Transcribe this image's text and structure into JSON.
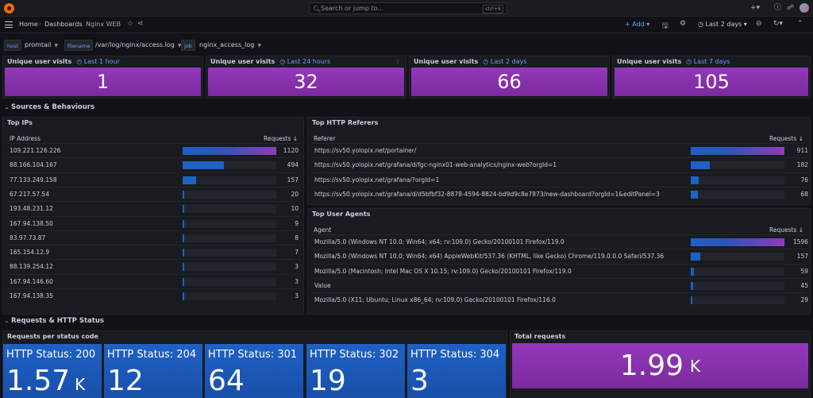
{
  "topbar": {
    "search_placeholder": "Search or jump to...",
    "shortcut": "ctrl+k"
  },
  "breadcrumb": [
    "Home",
    "Dashboards",
    "Nginx WEB"
  ],
  "toolbar": {
    "add_label": "Add",
    "time_range": "Last 2 days"
  },
  "variables": [
    {
      "label": "host",
      "value": "promtail"
    },
    {
      "label": "filename",
      "value": "/var/log/nginx/access.log"
    },
    {
      "label": "job",
      "value": "nginx_access_log"
    }
  ],
  "stats": [
    {
      "title": "Unique user visits",
      "range": "Last 1 hour",
      "value": "1"
    },
    {
      "title": "Unique user visits",
      "range": "Last 24 hours",
      "value": "32"
    },
    {
      "title": "Unique user visits",
      "range": "Last 2 days",
      "value": "66"
    },
    {
      "title": "Unique user visits",
      "range": "Last 7 days",
      "value": "105"
    }
  ],
  "rows": {
    "sources": "Sources & Behaviours",
    "requests": "Requests & HTTP Status"
  },
  "top_ips": {
    "title": "Top IPs",
    "col_ip": "IP Address",
    "col_requests": "Requests",
    "max": 1120,
    "items": [
      {
        "ip": "109.221.126.226",
        "requests": 1120
      },
      {
        "ip": "88.166.104.167",
        "requests": 494
      },
      {
        "ip": "77.133.249.158",
        "requests": 157
      },
      {
        "ip": "67.217.57.54",
        "requests": 20
      },
      {
        "ip": "193.48.231.12",
        "requests": 10
      },
      {
        "ip": "167.94.138.50",
        "requests": 9
      },
      {
        "ip": "83.97.73.87",
        "requests": 8
      },
      {
        "ip": "165.154.12.9",
        "requests": 7
      },
      {
        "ip": "88.139.254.12",
        "requests": 3
      },
      {
        "ip": "167.94.146.60",
        "requests": 3
      },
      {
        "ip": "167.94.138.35",
        "requests": 3
      }
    ]
  },
  "top_referers": {
    "title": "Top HTTP Referers",
    "col_referer": "Referer",
    "col_requests": "Requests",
    "max": 911,
    "items": [
      {
        "referer": "https://sv50.yolopix.net/portainer/",
        "requests": 911
      },
      {
        "referer": "https://sv50.yolopix.net/grafana/d/fgc-nginx01-web-analytics/nginx-web?orgId=1",
        "requests": 182
      },
      {
        "referer": "https://sv50.yolopix.net/grafana/?orgId=1",
        "requests": 76
      },
      {
        "referer": "https://sv50.yolopix.net/grafana/d/d5bfbf32-8878-4594-8824-bd9d9c8e7873/new-dashboard?orgId=1&editPanel=3",
        "requests": 68
      }
    ]
  },
  "top_agents": {
    "title": "Top User Agents",
    "col_agent": "Agent",
    "col_requests": "Requests",
    "max": 1596,
    "items": [
      {
        "agent": "Mozilla/5.0 (Windows NT 10.0; Win64; x64; rv:109.0) Gecko/20100101 Firefox/119.0",
        "requests": 1596
      },
      {
        "agent": "Mozilla/5.0 (Windows NT 10.0; Win64; x64) AppleWebKit/537.36 (KHTML, like Gecko) Chrome/119.0.0.0 Safari/537.36",
        "requests": 157
      },
      {
        "agent": "Mozilla/5.0 (Macintosh; Intel Mac OS X 10.15; rv:109.0) Gecko/20100101 Firefox/119.0",
        "requests": 59
      },
      {
        "agent": "Value",
        "requests": 45
      },
      {
        "agent": "Mozilla/5.0 (X11; Ubuntu; Linux x86_64; rv:109.0) Gecko/20100101 Firefox/116.0",
        "requests": 29
      }
    ]
  },
  "status_panel": {
    "title": "Requests per status code",
    "tiles": [
      {
        "name": "HTTP Status: 200",
        "value": "1.57",
        "unit": "K"
      },
      {
        "name": "HTTP Status: 204",
        "value": "12",
        "unit": ""
      },
      {
        "name": "HTTP Status: 301",
        "value": "64",
        "unit": ""
      },
      {
        "name": "HTTP Status: 302",
        "value": "19",
        "unit": ""
      },
      {
        "name": "HTTP Status: 304",
        "value": "3",
        "unit": ""
      }
    ]
  },
  "total_requests": {
    "title": "Total requests",
    "value": "1.99",
    "unit": "K"
  },
  "colors": {
    "purple": "#8f3bb8",
    "blue": "#1f60c4",
    "accent": "#6e9fff"
  }
}
